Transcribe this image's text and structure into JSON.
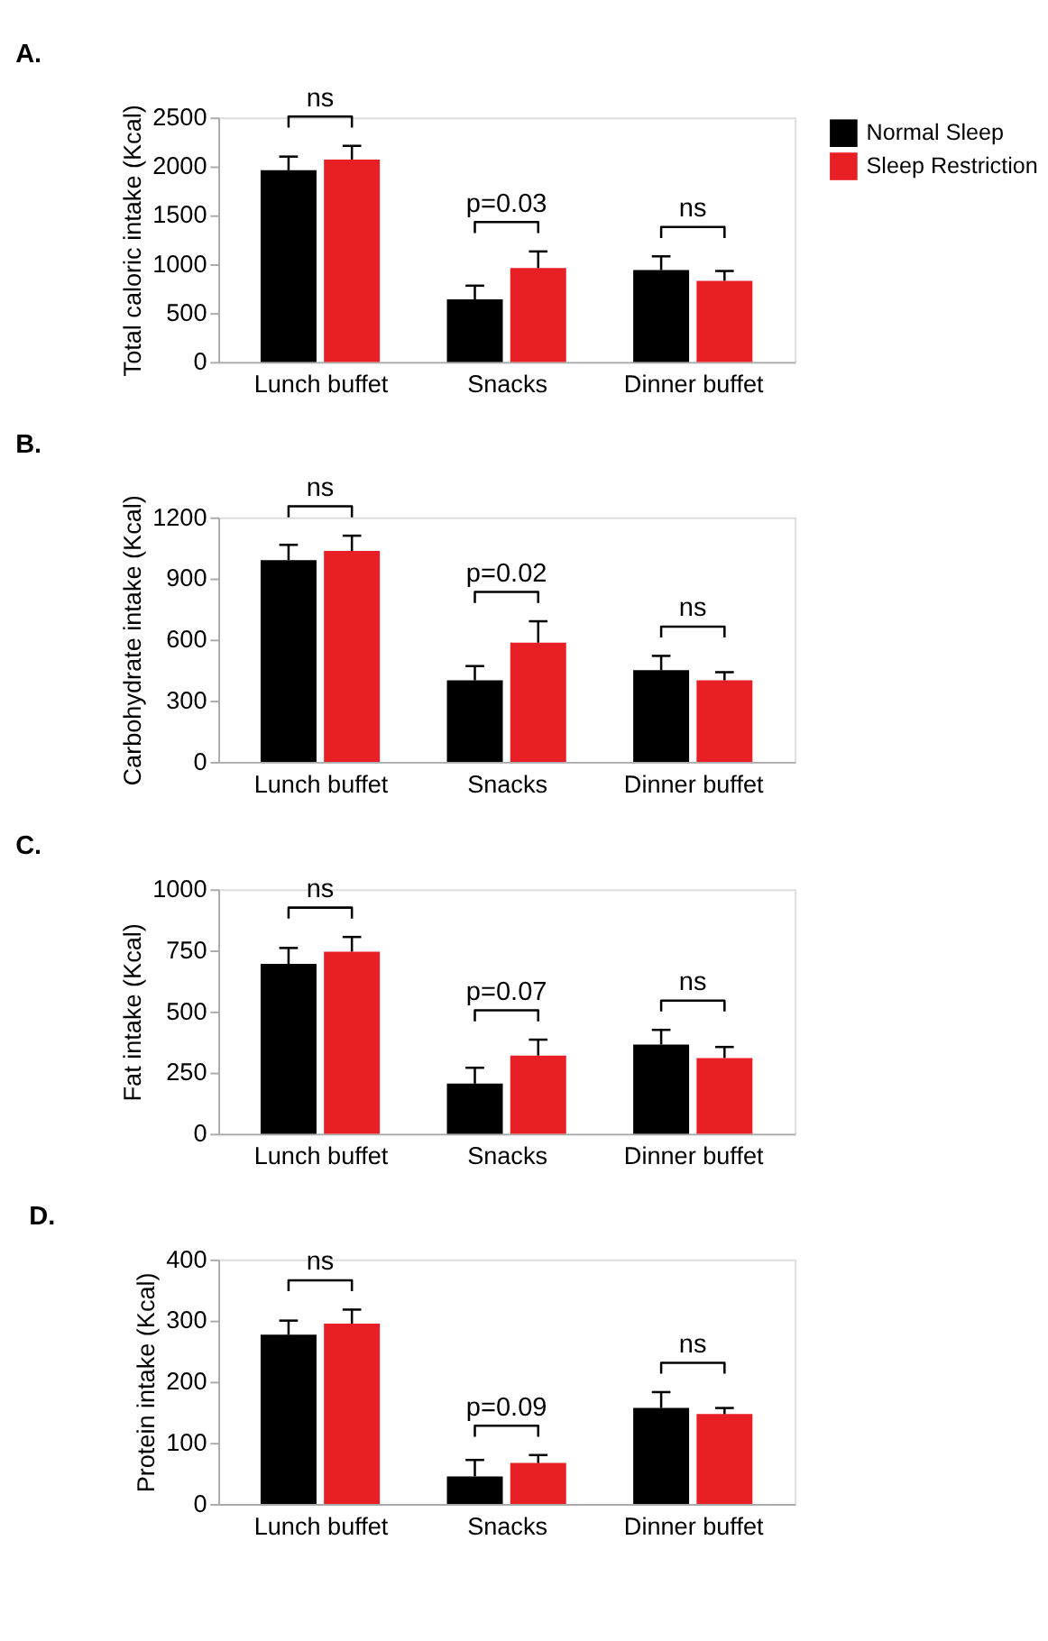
{
  "chart_data": [
    {
      "type": "bar",
      "title": "A.",
      "ylabel": "Total caloric intake (Kcal)",
      "categories": [
        "Lunch buffet",
        "Snacks",
        "Dinner buffet"
      ],
      "legend": "top right",
      "grid": false,
      "ylim": [
        0,
        2500
      ],
      "yticks": [
        0,
        500,
        1000,
        1500,
        2000,
        2500
      ],
      "series": [
        {
          "name": "Normal Sleep",
          "color": "#000000",
          "values": [
            1960,
            640,
            940
          ],
          "errors": [
            [
              1960,
              2100
            ],
            [
              640,
              780
            ],
            [
              940,
              1080
            ]
          ]
        },
        {
          "name": "Sleep Restriction",
          "color": "#e82025",
          "values": [
            2070,
            960,
            830
          ],
          "errors": [
            [
              2070,
              2210
            ],
            [
              960,
              1130
            ],
            [
              830,
              930
            ]
          ]
        }
      ],
      "annotations": [
        "ns",
        "p=0.03",
        "ns"
      ]
    },
    {
      "type": "bar",
      "title": "B.",
      "ylabel": "Carbohydrate intake (Kcal)",
      "categories": [
        "Lunch buffet",
        "Snacks",
        "Dinner buffet"
      ],
      "grid": false,
      "ylim": [
        0,
        1200
      ],
      "yticks": [
        0,
        300,
        600,
        900,
        1200
      ],
      "series": [
        {
          "color": "#000000",
          "values": [
            990,
            400,
            450
          ],
          "errors": [
            [
              990,
              1065
            ],
            [
              400,
              470
            ],
            [
              450,
              520
            ]
          ]
        },
        {
          "color": "#e82025",
          "values": [
            1035,
            585,
            400
          ],
          "errors": [
            [
              1035,
              1110
            ],
            [
              585,
              690
            ],
            [
              400,
              440
            ]
          ]
        }
      ],
      "annotations": [
        "ns",
        "p=0.02",
        "ns"
      ]
    },
    {
      "type": "bar",
      "title": "C.",
      "ylabel": "Fat intake (Kcal)",
      "categories": [
        "Lunch buffet",
        "Snacks",
        "Dinner buffet"
      ],
      "grid": false,
      "ylim": [
        0,
        1000
      ],
      "yticks": [
        0,
        250,
        500,
        750,
        1000
      ],
      "series": [
        {
          "color": "#000000",
          "values": [
            695,
            205,
            365
          ],
          "errors": [
            [
              695,
              760
            ],
            [
              205,
              270
            ],
            [
              365,
              425
            ]
          ]
        },
        {
          "color": "#e82025",
          "values": [
            745,
            320,
            310
          ],
          "errors": [
            [
              745,
              805
            ],
            [
              320,
              385
            ],
            [
              310,
              355
            ]
          ]
        }
      ],
      "annotations": [
        "ns",
        "p=0.07",
        "ns"
      ]
    },
    {
      "type": "bar",
      "title": "D.",
      "ylabel": "Protein intake (Kcal)",
      "categories": [
        "Lunch buffet",
        "Snacks",
        "Dinner buffet"
      ],
      "grid": false,
      "ylim": [
        0,
        400
      ],
      "yticks": [
        0,
        100,
        200,
        300,
        400
      ],
      "series": [
        {
          "color": "#000000",
          "values": [
            277,
            45,
            157
          ],
          "errors": [
            [
              277,
              300
            ],
            [
              45,
              72
            ],
            [
              157,
              183
            ]
          ]
        },
        {
          "color": "#e82025",
          "values": [
            295,
            67,
            147
          ],
          "errors": [
            [
              295,
              318
            ],
            [
              67,
              80
            ],
            [
              147,
              157
            ]
          ]
        }
      ],
      "annotations": [
        "ns",
        "p=0.09",
        "ns"
      ]
    }
  ]
}
